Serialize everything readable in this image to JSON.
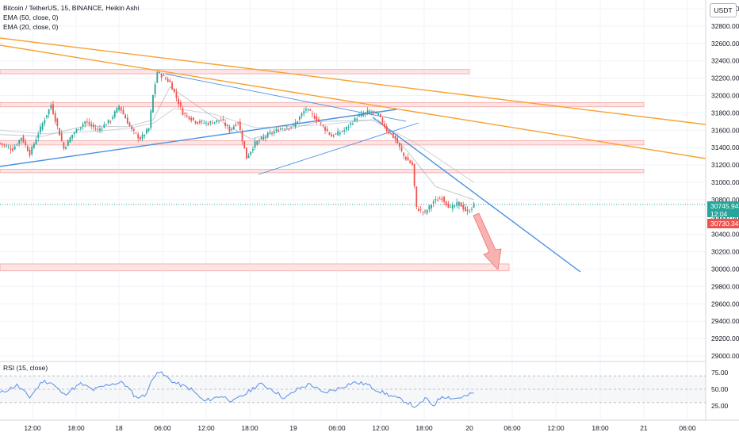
{
  "legend": {
    "title": "Bitcoin / TetherUS, 15, BINANCE, Heikin Ashi",
    "ema50": "EMA (50, close, 0)",
    "ema20": "EMA (20, close, 0)",
    "rsi": "RSI (15, close)"
  },
  "currency": "USDT",
  "price_tags": {
    "last": "30745.94",
    "countdown": "12:04",
    "ha_close": "30730.34"
  },
  "colors": {
    "up": "#26a69a",
    "down": "#ef5350",
    "trend": "#4a90e2",
    "orange": "#f7a130",
    "zone_fill": "#fde4e4",
    "zone_stroke": "#f5a3a3",
    "rsi": "#5b8ee6",
    "last_tag": "#26a69a",
    "ha_tag": "#ef5350"
  },
  "chart_data": [
    {
      "type": "candlestick",
      "title": "Bitcoin / TetherUS, 15, BINANCE, Heikin Ashi",
      "y_axis_ticks": [
        33000,
        32800,
        32600,
        32400,
        32200,
        32000,
        31800,
        31600,
        31400,
        31200,
        31000,
        30800,
        30600,
        30400,
        30200,
        30000,
        29800,
        29600,
        29400,
        29200,
        29000
      ],
      "ylim": [
        29000,
        33000
      ],
      "x_axis_ticks": [
        "12:00",
        "18:00",
        "18",
        "06:00",
        "12:00",
        "18:00",
        "19",
        "06:00",
        "12:00",
        "18:00",
        "20",
        "06:00",
        "12:00",
        "18:00",
        "21",
        "06:00"
      ],
      "ohlc_anchors": [
        {
          "t": 0,
          "close": 31450
        },
        {
          "t": 6,
          "close": 31380
        },
        {
          "t": 10,
          "close": 31520
        },
        {
          "t": 14,
          "close": 31330
        },
        {
          "t": 20,
          "close": 31680
        },
        {
          "t": 24,
          "close": 31890
        },
        {
          "t": 30,
          "close": 31390
        },
        {
          "t": 34,
          "close": 31550
        },
        {
          "t": 40,
          "close": 31700
        },
        {
          "t": 46,
          "close": 31600
        },
        {
          "t": 52,
          "close": 31720
        },
        {
          "t": 56,
          "close": 31880
        },
        {
          "t": 62,
          "close": 31600
        },
        {
          "t": 66,
          "close": 31500
        },
        {
          "t": 70,
          "close": 31620
        },
        {
          "t": 72,
          "close": 32000
        },
        {
          "t": 74,
          "close": 32270
        },
        {
          "t": 80,
          "close": 32150
        },
        {
          "t": 86,
          "close": 31800
        },
        {
          "t": 92,
          "close": 31700
        },
        {
          "t": 98,
          "close": 31680
        },
        {
          "t": 104,
          "close": 31720
        },
        {
          "t": 108,
          "close": 31600
        },
        {
          "t": 112,
          "close": 31700
        },
        {
          "t": 116,
          "close": 31280
        },
        {
          "t": 120,
          "close": 31450
        },
        {
          "t": 126,
          "close": 31550
        },
        {
          "t": 132,
          "close": 31620
        },
        {
          "t": 138,
          "close": 31650
        },
        {
          "t": 144,
          "close": 31850
        },
        {
          "t": 150,
          "close": 31700
        },
        {
          "t": 156,
          "close": 31530
        },
        {
          "t": 162,
          "close": 31600
        },
        {
          "t": 168,
          "close": 31750
        },
        {
          "t": 174,
          "close": 31820
        },
        {
          "t": 178,
          "close": 31780
        },
        {
          "t": 182,
          "close": 31600
        },
        {
          "t": 186,
          "close": 31500
        },
        {
          "t": 190,
          "close": 31300
        },
        {
          "t": 194,
          "close": 31200
        },
        {
          "t": 196,
          "close": 30700
        },
        {
          "t": 200,
          "close": 30650
        },
        {
          "t": 204,
          "close": 30780
        },
        {
          "t": 208,
          "close": 30820
        },
        {
          "t": 212,
          "close": 30700
        },
        {
          "t": 216,
          "close": 30760
        },
        {
          "t": 220,
          "close": 30650
        },
        {
          "t": 223,
          "close": 30740
        }
      ],
      "ema50_anchors": [
        {
          "t": 0,
          "v": 31600
        },
        {
          "t": 20,
          "v": 31560
        },
        {
          "t": 40,
          "v": 31580
        },
        {
          "t": 60,
          "v": 31620
        },
        {
          "t": 72,
          "v": 31680
        },
        {
          "t": 82,
          "v": 31850
        },
        {
          "t": 100,
          "v": 31790
        },
        {
          "t": 120,
          "v": 31630
        },
        {
          "t": 150,
          "v": 31660
        },
        {
          "t": 175,
          "v": 31720
        },
        {
          "t": 195,
          "v": 31460
        },
        {
          "t": 215,
          "v": 31130
        },
        {
          "t": 223,
          "v": 31000
        }
      ],
      "ema20_anchors": [
        {
          "t": 0,
          "v": 31550
        },
        {
          "t": 20,
          "v": 31530
        },
        {
          "t": 40,
          "v": 31650
        },
        {
          "t": 60,
          "v": 31640
        },
        {
          "t": 72,
          "v": 31720
        },
        {
          "t": 80,
          "v": 32100
        },
        {
          "t": 100,
          "v": 31760
        },
        {
          "t": 118,
          "v": 31500
        },
        {
          "t": 150,
          "v": 31700
        },
        {
          "t": 178,
          "v": 31720
        },
        {
          "t": 192,
          "v": 31350
        },
        {
          "t": 205,
          "v": 30950
        },
        {
          "t": 223,
          "v": 30800
        }
      ],
      "support_resistance_zones": [
        {
          "y_low": 32250,
          "y_high": 32300
        },
        {
          "y_low": 31870,
          "y_high": 31920
        },
        {
          "y_low": 31430,
          "y_high": 31480
        },
        {
          "y_low": 31110,
          "y_high": 31150
        },
        {
          "y_low": 29980,
          "y_high": 30060
        }
      ],
      "last_price": 30745.94,
      "ha_close": 30730.34
    },
    {
      "type": "line",
      "title": "RSI (15, close)",
      "y_axis_ticks": [
        75.0,
        50.0,
        25.0
      ],
      "ylim": [
        10,
        85
      ],
      "bands": [
        30,
        70
      ],
      "anchors": [
        {
          "t": 0,
          "v": 44
        },
        {
          "t": 8,
          "v": 56
        },
        {
          "t": 14,
          "v": 38
        },
        {
          "t": 20,
          "v": 62
        },
        {
          "t": 24,
          "v": 60
        },
        {
          "t": 30,
          "v": 42
        },
        {
          "t": 38,
          "v": 58
        },
        {
          "t": 44,
          "v": 49
        },
        {
          "t": 52,
          "v": 58
        },
        {
          "t": 58,
          "v": 60
        },
        {
          "t": 64,
          "v": 38
        },
        {
          "t": 68,
          "v": 40
        },
        {
          "t": 74,
          "v": 78
        },
        {
          "t": 82,
          "v": 60
        },
        {
          "t": 90,
          "v": 50
        },
        {
          "t": 96,
          "v": 32
        },
        {
          "t": 104,
          "v": 40
        },
        {
          "t": 110,
          "v": 32
        },
        {
          "t": 116,
          "v": 44
        },
        {
          "t": 122,
          "v": 58
        },
        {
          "t": 128,
          "v": 50
        },
        {
          "t": 134,
          "v": 36
        },
        {
          "t": 140,
          "v": 50
        },
        {
          "t": 146,
          "v": 58
        },
        {
          "t": 152,
          "v": 44
        },
        {
          "t": 160,
          "v": 52
        },
        {
          "t": 166,
          "v": 60
        },
        {
          "t": 172,
          "v": 58
        },
        {
          "t": 178,
          "v": 48
        },
        {
          "t": 184,
          "v": 40
        },
        {
          "t": 192,
          "v": 30
        },
        {
          "t": 196,
          "v": 22
        },
        {
          "t": 200,
          "v": 36
        },
        {
          "t": 204,
          "v": 26
        },
        {
          "t": 208,
          "v": 40
        },
        {
          "t": 214,
          "v": 36
        },
        {
          "t": 220,
          "v": 40
        },
        {
          "t": 223,
          "v": 45
        }
      ]
    }
  ]
}
